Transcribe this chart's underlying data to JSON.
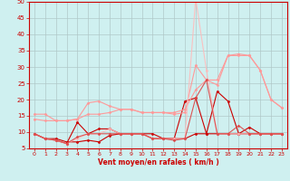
{
  "xlabel": "Vent moyen/en rafales ( km/h )",
  "bg_color": "#cff0f0",
  "grid_color": "#b0c8c8",
  "axis_color": "#cc0000",
  "text_color": "#cc0000",
  "xlim": [
    -0.5,
    23.5
  ],
  "ylim": [
    5,
    50
  ],
  "yticks": [
    5,
    10,
    15,
    20,
    25,
    30,
    35,
    40,
    45,
    50
  ],
  "xticks": [
    0,
    1,
    2,
    3,
    4,
    5,
    6,
    7,
    8,
    9,
    10,
    11,
    12,
    13,
    14,
    15,
    16,
    17,
    18,
    19,
    20,
    21,
    22,
    23
  ],
  "x": [
    0,
    1,
    2,
    3,
    4,
    5,
    6,
    7,
    8,
    9,
    10,
    11,
    12,
    13,
    14,
    15,
    16,
    17,
    18,
    19,
    20,
    21,
    22,
    23
  ],
  "series": [
    {
      "y": [
        9.5,
        8.0,
        8.0,
        7.0,
        7.0,
        7.5,
        7.0,
        9.0,
        9.5,
        9.5,
        9.5,
        8.0,
        8.0,
        8.0,
        8.0,
        9.5,
        9.5,
        9.5,
        9.5,
        9.5,
        9.5,
        9.5,
        9.5,
        9.5
      ],
      "color": "#cc0000",
      "lw": 0.8,
      "marker": "D",
      "markersize": 1.5,
      "alpha": 1.0
    },
    {
      "y": [
        9.5,
        8.0,
        7.5,
        6.5,
        13.0,
        9.5,
        11.0,
        11.0,
        9.5,
        9.5,
        9.5,
        9.5,
        8.0,
        8.0,
        19.5,
        20.5,
        9.5,
        22.5,
        19.5,
        9.5,
        11.5,
        9.5,
        9.5,
        9.5
      ],
      "color": "#cc0000",
      "lw": 0.8,
      "marker": "D",
      "markersize": 1.5,
      "alpha": 1.0
    },
    {
      "y": [
        14.0,
        13.5,
        13.5,
        13.5,
        14.0,
        19.0,
        19.5,
        18.0,
        17.0,
        17.0,
        16.0,
        16.0,
        16.0,
        16.0,
        17.0,
        23.0,
        26.0,
        24.5,
        33.5,
        34.0,
        33.5,
        29.0,
        20.0,
        17.5
      ],
      "color": "#ff9999",
      "lw": 0.8,
      "marker": "D",
      "markersize": 1.5,
      "alpha": 1.0
    },
    {
      "y": [
        15.5,
        15.5,
        13.5,
        13.5,
        14.0,
        15.5,
        15.5,
        16.0,
        17.0,
        17.0,
        16.0,
        16.0,
        16.0,
        15.5,
        16.0,
        30.5,
        26.0,
        26.0,
        33.5,
        33.5,
        33.5,
        29.0,
        20.0,
        17.5
      ],
      "color": "#ff9999",
      "lw": 0.8,
      "marker": "D",
      "markersize": 1.5,
      "alpha": 1.0
    },
    {
      "y": [
        9.5,
        8.0,
        7.5,
        6.5,
        8.0,
        9.5,
        9.5,
        11.0,
        9.5,
        9.5,
        9.5,
        8.0,
        8.0,
        8.0,
        8.0,
        51.0,
        29.0,
        9.5,
        9.5,
        9.5,
        9.5,
        9.5,
        9.5,
        9.5
      ],
      "color": "#ffbbbb",
      "lw": 0.8,
      "marker": "D",
      "markersize": 1.5,
      "alpha": 0.9
    },
    {
      "y": [
        9.5,
        8.0,
        7.5,
        6.5,
        8.5,
        9.5,
        9.5,
        9.5,
        9.5,
        9.5,
        9.5,
        8.0,
        8.0,
        7.5,
        8.0,
        20.5,
        26.0,
        9.5,
        9.5,
        12.0,
        9.5,
        9.5,
        9.5,
        9.5
      ],
      "color": "#dd4444",
      "lw": 0.8,
      "marker": "D",
      "markersize": 1.5,
      "alpha": 0.9
    }
  ]
}
